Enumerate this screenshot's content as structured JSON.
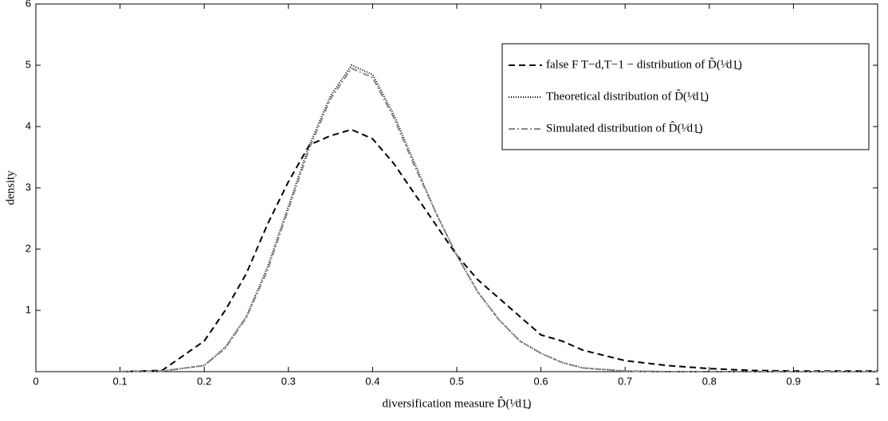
{
  "chart_data": {
    "type": "line",
    "xlabel": "diversification measure D̂(¹⁄d1̲)",
    "ylabel": "density",
    "xlim": [
      0,
      1
    ],
    "ylim": [
      0,
      6
    ],
    "xticks": [
      0,
      0.1,
      0.2,
      0.3,
      0.4,
      0.5,
      0.6,
      0.7,
      0.8,
      0.9,
      1
    ],
    "yticks": [
      1,
      2,
      3,
      4,
      5,
      6
    ],
    "x": [
      0.1,
      0.15,
      0.2,
      0.225,
      0.25,
      0.275,
      0.3,
      0.325,
      0.35,
      0.375,
      0.4,
      0.425,
      0.45,
      0.475,
      0.5,
      0.525,
      0.55,
      0.575,
      0.6,
      0.625,
      0.65,
      0.7,
      0.75,
      0.8,
      0.85,
      0.9,
      1.0
    ],
    "series": [
      {
        "name": "false F T−d,T−1 − distribution of D̂(¹⁄d1̲)",
        "color": "#000000",
        "dash": "8,5",
        "values": [
          0,
          0.02,
          0.5,
          1.0,
          1.6,
          2.4,
          3.1,
          3.7,
          3.85,
          3.95,
          3.8,
          3.4,
          2.9,
          2.4,
          1.9,
          1.5,
          1.2,
          0.9,
          0.6,
          0.5,
          0.35,
          0.18,
          0.1,
          0.05,
          0.02,
          0.01,
          0.01
        ]
      },
      {
        "name": "Theoretical distribution of D̂(¹⁄d1̲)",
        "color": "#000000",
        "dash": "1,2",
        "values": [
          0,
          0.01,
          0.1,
          0.4,
          0.9,
          1.7,
          2.7,
          3.7,
          4.5,
          5.0,
          4.85,
          4.2,
          3.4,
          2.6,
          1.9,
          1.3,
          0.85,
          0.5,
          0.3,
          0.15,
          0.06,
          0.01,
          0,
          0,
          0,
          0,
          0
        ]
      },
      {
        "name": "Simulated distribution of D̂(¹⁄d1̲)",
        "color": "#888888",
        "dash": "8,3,2,3",
        "values": [
          0,
          0.01,
          0.1,
          0.38,
          0.88,
          1.65,
          2.65,
          3.65,
          4.45,
          4.95,
          4.8,
          4.15,
          3.35,
          2.6,
          1.9,
          1.3,
          0.85,
          0.5,
          0.3,
          0.15,
          0.06,
          0.01,
          0,
          0,
          0,
          0,
          0
        ]
      }
    ]
  }
}
